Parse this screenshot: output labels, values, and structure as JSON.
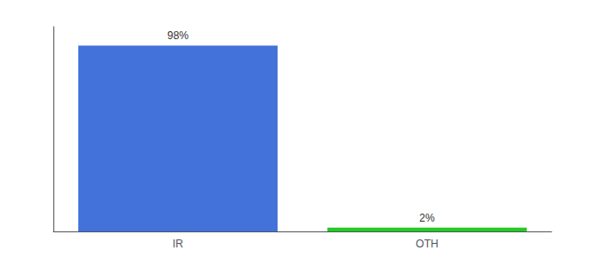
{
  "chart_data": {
    "type": "bar",
    "categories": [
      "IR",
      "OTH"
    ],
    "values": [
      98,
      2
    ],
    "value_labels": [
      "98%",
      "2%"
    ],
    "colors": [
      "#4472db",
      "#22cc22"
    ],
    "ylim": [
      0,
      108
    ],
    "data_labels": true,
    "tick_labels": "x",
    "grid": false
  }
}
